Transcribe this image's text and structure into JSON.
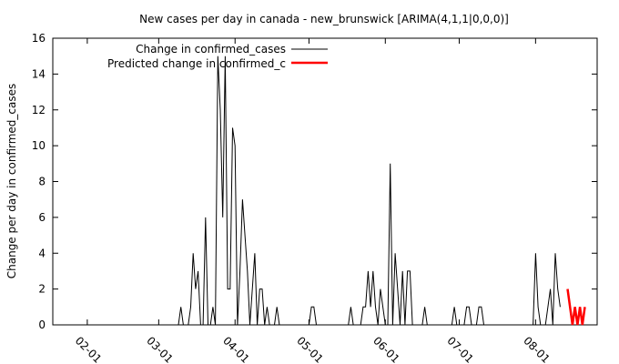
{
  "chart_data": {
    "type": "line",
    "title": "New cases per day in canada - new_brunswick [ARIMA(4,1,1|0,0,0)]",
    "xlabel": "",
    "ylabel": "Change per day in confirmed_cases",
    "xlim": [
      "2020-01-18",
      "2020-08-26"
    ],
    "ylim": [
      0,
      16
    ],
    "y_ticks": [
      "0",
      "2",
      "4",
      "6",
      "8",
      "10",
      "12",
      "14",
      "16"
    ],
    "x_ticks": [
      {
        "date": "2020-02-01",
        "label": "02-01"
      },
      {
        "date": "2020-03-01",
        "label": "03-01"
      },
      {
        "date": "2020-04-01",
        "label": "04-01"
      },
      {
        "date": "2020-05-01",
        "label": "05-01"
      },
      {
        "date": "2020-06-01",
        "label": "06-01"
      },
      {
        "date": "2020-07-01",
        "label": "07-01"
      },
      {
        "date": "2020-08-01",
        "label": "08-01"
      }
    ],
    "grid": false,
    "legend": "top-left",
    "series": [
      {
        "name": "Change in confirmed_cases",
        "color": "#000000",
        "points": [
          [
            "2020-01-25",
            0
          ],
          [
            "2020-03-09",
            0
          ],
          [
            "2020-03-10",
            1
          ],
          [
            "2020-03-11",
            0
          ],
          [
            "2020-03-13",
            0
          ],
          [
            "2020-03-14",
            1
          ],
          [
            "2020-03-15",
            4
          ],
          [
            "2020-03-16",
            2
          ],
          [
            "2020-03-17",
            3
          ],
          [
            "2020-03-18",
            0
          ],
          [
            "2020-03-19",
            0
          ],
          [
            "2020-03-20",
            6
          ],
          [
            "2020-03-21",
            0
          ],
          [
            "2020-03-22",
            0
          ],
          [
            "2020-03-23",
            1
          ],
          [
            "2020-03-24",
            0
          ],
          [
            "2020-03-25",
            15
          ],
          [
            "2020-03-26",
            12
          ],
          [
            "2020-03-27",
            6
          ],
          [
            "2020-03-28",
            15
          ],
          [
            "2020-03-29",
            2
          ],
          [
            "2020-03-30",
            2
          ],
          [
            "2020-03-31",
            11
          ],
          [
            "2020-04-01",
            10
          ],
          [
            "2020-04-02",
            0
          ],
          [
            "2020-04-03",
            3
          ],
          [
            "2020-04-04",
            7
          ],
          [
            "2020-04-05",
            5
          ],
          [
            "2020-04-06",
            3
          ],
          [
            "2020-04-07",
            0
          ],
          [
            "2020-04-08",
            2
          ],
          [
            "2020-04-09",
            4
          ],
          [
            "2020-04-10",
            0
          ],
          [
            "2020-04-11",
            2
          ],
          [
            "2020-04-12",
            2
          ],
          [
            "2020-04-13",
            0
          ],
          [
            "2020-04-14",
            1
          ],
          [
            "2020-04-15",
            0
          ],
          [
            "2020-04-17",
            0
          ],
          [
            "2020-04-18",
            1
          ],
          [
            "2020-04-19",
            0
          ],
          [
            "2020-05-01",
            0
          ],
          [
            "2020-05-02",
            1
          ],
          [
            "2020-05-03",
            1
          ],
          [
            "2020-05-04",
            0
          ],
          [
            "2020-05-17",
            0
          ],
          [
            "2020-05-18",
            1
          ],
          [
            "2020-05-19",
            0
          ],
          [
            "2020-05-22",
            0
          ],
          [
            "2020-05-23",
            1
          ],
          [
            "2020-05-24",
            1
          ],
          [
            "2020-05-25",
            3
          ],
          [
            "2020-05-26",
            1
          ],
          [
            "2020-05-27",
            3
          ],
          [
            "2020-05-28",
            1
          ],
          [
            "2020-05-29",
            0
          ],
          [
            "2020-05-30",
            2
          ],
          [
            "2020-05-31",
            1
          ],
          [
            "2020-06-01",
            0
          ],
          [
            "2020-06-02",
            0
          ],
          [
            "2020-06-03",
            9
          ],
          [
            "2020-06-04",
            0
          ],
          [
            "2020-06-05",
            4
          ],
          [
            "2020-06-06",
            2
          ],
          [
            "2020-06-07",
            0
          ],
          [
            "2020-06-08",
            3
          ],
          [
            "2020-06-09",
            0
          ],
          [
            "2020-06-10",
            3
          ],
          [
            "2020-06-11",
            3
          ],
          [
            "2020-06-12",
            0
          ],
          [
            "2020-06-16",
            0
          ],
          [
            "2020-06-17",
            1
          ],
          [
            "2020-06-18",
            0
          ],
          [
            "2020-06-28",
            0
          ],
          [
            "2020-06-29",
            1
          ],
          [
            "2020-06-30",
            0
          ],
          [
            "2020-07-03",
            0
          ],
          [
            "2020-07-04",
            1
          ],
          [
            "2020-07-05",
            1
          ],
          [
            "2020-07-06",
            0
          ],
          [
            "2020-07-08",
            0
          ],
          [
            "2020-07-09",
            1
          ],
          [
            "2020-07-10",
            1
          ],
          [
            "2020-07-11",
            0
          ],
          [
            "2020-07-31",
            0
          ],
          [
            "2020-08-01",
            4
          ],
          [
            "2020-08-02",
            1
          ],
          [
            "2020-08-03",
            0
          ],
          [
            "2020-08-05",
            0
          ],
          [
            "2020-08-06",
            1
          ],
          [
            "2020-08-07",
            2
          ],
          [
            "2020-08-08",
            0
          ],
          [
            "2020-08-09",
            4
          ],
          [
            "2020-08-10",
            2
          ],
          [
            "2020-08-11",
            1
          ]
        ]
      },
      {
        "name": "Predicted change in confirmed_c",
        "color": "#ff0000",
        "points": [
          [
            "2020-08-14",
            2
          ],
          [
            "2020-08-16",
            0
          ],
          [
            "2020-08-17",
            1
          ],
          [
            "2020-08-18",
            0
          ],
          [
            "2020-08-19",
            1
          ],
          [
            "2020-08-20",
            0
          ],
          [
            "2020-08-21",
            1
          ]
        ]
      }
    ]
  }
}
